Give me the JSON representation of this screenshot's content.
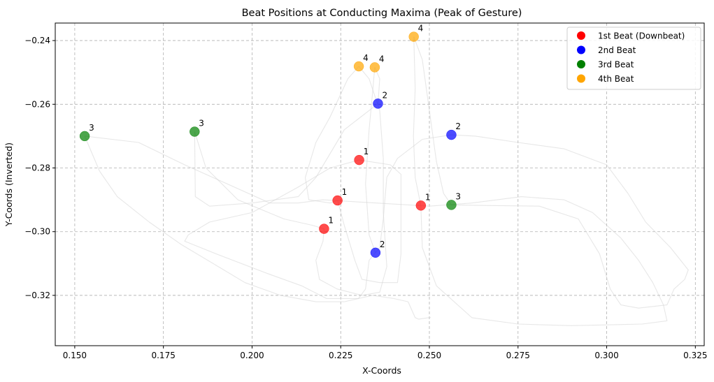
{
  "chart_data": {
    "type": "scatter",
    "title": "Beat Positions at Conducting Maxima (Peak of Gesture)",
    "xlabel": "X-Coords",
    "ylabel": "Y-Coords (Inverted)",
    "xlim": [
      0.1445,
      0.3275
    ],
    "ylim": [
      -0.3358,
      -0.2345
    ],
    "xticks": [
      0.15,
      0.175,
      0.2,
      0.225,
      0.25,
      0.275,
      0.3,
      0.325
    ],
    "xtick_labels": [
      "0.150",
      "0.175",
      "0.200",
      "0.225",
      "0.250",
      "0.275",
      "0.300",
      "0.325"
    ],
    "yticks": [
      -0.24,
      -0.26,
      -0.28,
      -0.3,
      -0.32
    ],
    "ytick_labels": [
      "−0.24",
      "−0.26",
      "−0.28",
      "−0.30",
      "−0.32"
    ],
    "grid": true,
    "legend_position": "top-right",
    "series": [
      {
        "name": "1st Beat (Downbeat)",
        "color": "#ff0000",
        "label": "1",
        "points": [
          [
            0.2302,
            -0.2775
          ],
          [
            0.2241,
            -0.2902
          ],
          [
            0.2203,
            -0.2991
          ],
          [
            0.2476,
            -0.2918
          ]
        ]
      },
      {
        "name": "2nd Beat",
        "color": "#0000ff",
        "label": "2",
        "points": [
          [
            0.2355,
            -0.2598
          ],
          [
            0.2562,
            -0.2696
          ],
          [
            0.2348,
            -0.3066
          ]
        ]
      },
      {
        "name": "3rd Beat",
        "color": "#008000",
        "label": "3",
        "points": [
          [
            0.1528,
            -0.27
          ],
          [
            0.1838,
            -0.2686
          ],
          [
            0.2562,
            -0.2916
          ]
        ]
      },
      {
        "name": "4th Beat",
        "color": "#ffa500",
        "label": "4",
        "points": [
          [
            0.2301,
            -0.2481
          ],
          [
            0.2346,
            -0.2484
          ],
          [
            0.2456,
            -0.2388
          ]
        ]
      }
    ],
    "trajectories": [
      [
        [
          0.1528,
          -0.27
        ],
        [
          0.168,
          -0.272
        ],
        [
          0.181,
          -0.279
        ],
        [
          0.195,
          -0.286
        ],
        [
          0.205,
          -0.291
        ],
        [
          0.213,
          -0.291
        ],
        [
          0.22,
          -0.29
        ],
        [
          0.235,
          -0.291
        ],
        [
          0.25,
          -0.292
        ],
        [
          0.262,
          -0.291
        ],
        [
          0.276,
          -0.289
        ],
        [
          0.288,
          -0.29
        ],
        [
          0.296,
          -0.294
        ],
        [
          0.304,
          -0.302
        ],
        [
          0.309,
          -0.309
        ],
        [
          0.313,
          -0.316
        ],
        [
          0.316,
          -0.323
        ],
        [
          0.317,
          -0.328
        ],
        [
          0.31,
          -0.329
        ],
        [
          0.29,
          -0.3295
        ],
        [
          0.275,
          -0.329
        ],
        [
          0.262,
          -0.327
        ],
        [
          0.252,
          -0.317
        ],
        [
          0.248,
          -0.305
        ],
        [
          0.2476,
          -0.2918
        ]
      ],
      [
        [
          0.2476,
          -0.2918
        ],
        [
          0.246,
          -0.283
        ],
        [
          0.2455,
          -0.27
        ],
        [
          0.246,
          -0.255
        ],
        [
          0.2456,
          -0.2388
        ]
      ],
      [
        [
          0.2456,
          -0.2388
        ],
        [
          0.248,
          -0.246
        ],
        [
          0.25,
          -0.262
        ],
        [
          0.252,
          -0.278
        ],
        [
          0.254,
          -0.288
        ],
        [
          0.2562,
          -0.2916
        ],
        [
          0.267,
          -0.2918
        ],
        [
          0.281,
          -0.292
        ],
        [
          0.292,
          -0.296
        ],
        [
          0.298,
          -0.307
        ],
        [
          0.301,
          -0.318
        ],
        [
          0.304,
          -0.323
        ],
        [
          0.309,
          -0.324
        ],
        [
          0.317,
          -0.323
        ],
        [
          0.319,
          -0.318
        ],
        [
          0.322,
          -0.315
        ],
        [
          0.323,
          -0.312
        ],
        [
          0.318,
          -0.305
        ],
        [
          0.311,
          -0.297
        ],
        [
          0.306,
          -0.288
        ],
        [
          0.3,
          -0.279
        ],
        [
          0.288,
          -0.274
        ],
        [
          0.275,
          -0.272
        ],
        [
          0.263,
          -0.27
        ],
        [
          0.2562,
          -0.2696
        ]
      ],
      [
        [
          0.2562,
          -0.2696
        ],
        [
          0.248,
          -0.271
        ],
        [
          0.241,
          -0.277
        ],
        [
          0.238,
          -0.283
        ],
        [
          0.237,
          -0.296
        ],
        [
          0.236,
          -0.305
        ],
        [
          0.2348,
          -0.3066
        ]
      ],
      [
        [
          0.2348,
          -0.3066
        ],
        [
          0.233,
          -0.301
        ],
        [
          0.232,
          -0.285
        ],
        [
          0.233,
          -0.268
        ],
        [
          0.234,
          -0.256
        ],
        [
          0.2346,
          -0.2484
        ]
      ],
      [
        [
          0.2346,
          -0.2484
        ],
        [
          0.236,
          -0.252
        ],
        [
          0.2355,
          -0.2598
        ]
      ],
      [
        [
          0.2355,
          -0.2598
        ],
        [
          0.226,
          -0.268
        ],
        [
          0.218,
          -0.283
        ],
        [
          0.213,
          -0.289
        ],
        [
          0.2,
          -0.291
        ],
        [
          0.188,
          -0.292
        ],
        [
          0.184,
          -0.289
        ],
        [
          0.1838,
          -0.2686
        ]
      ],
      [
        [
          0.1838,
          -0.2686
        ],
        [
          0.187,
          -0.28
        ],
        [
          0.196,
          -0.29
        ],
        [
          0.209,
          -0.296
        ],
        [
          0.217,
          -0.298
        ],
        [
          0.2203,
          -0.2991
        ]
      ],
      [
        [
          0.2203,
          -0.2991
        ],
        [
          0.22,
          -0.303
        ],
        [
          0.218,
          -0.309
        ],
        [
          0.219,
          -0.315
        ],
        [
          0.224,
          -0.318
        ],
        [
          0.231,
          -0.32
        ],
        [
          0.236,
          -0.319
        ],
        [
          0.238,
          -0.311
        ],
        [
          0.237,
          -0.294
        ],
        [
          0.237,
          -0.277
        ],
        [
          0.236,
          -0.262
        ],
        [
          0.233,
          -0.252
        ],
        [
          0.2301,
          -0.2481
        ]
      ],
      [
        [
          0.2301,
          -0.2481
        ],
        [
          0.227,
          -0.252
        ],
        [
          0.222,
          -0.264
        ],
        [
          0.218,
          -0.272
        ],
        [
          0.215,
          -0.283
        ],
        [
          0.216,
          -0.29
        ],
        [
          0.222,
          -0.291
        ],
        [
          0.2241,
          -0.2902
        ]
      ],
      [
        [
          0.2241,
          -0.2902
        ],
        [
          0.226,
          -0.298
        ],
        [
          0.229,
          -0.309
        ],
        [
          0.231,
          -0.315
        ],
        [
          0.236,
          -0.316
        ],
        [
          0.241,
          -0.316
        ],
        [
          0.242,
          -0.307
        ],
        [
          0.242,
          -0.295
        ],
        [
          0.242,
          -0.282
        ],
        [
          0.239,
          -0.279
        ],
        [
          0.2302,
          -0.2775
        ]
      ],
      [
        [
          0.2302,
          -0.2775
        ],
        [
          0.222,
          -0.28
        ],
        [
          0.213,
          -0.286
        ],
        [
          0.2,
          -0.294
        ],
        [
          0.188,
          -0.297
        ],
        [
          0.182,
          -0.301
        ],
        [
          0.181,
          -0.303
        ],
        [
          0.19,
          -0.307
        ],
        [
          0.204,
          -0.313
        ],
        [
          0.214,
          -0.317
        ],
        [
          0.221,
          -0.321
        ],
        [
          0.23,
          -0.321
        ],
        [
          0.232,
          -0.318
        ],
        [
          0.233,
          -0.309
        ],
        [
          0.2348,
          -0.3066
        ]
      ],
      [
        [
          0.1528,
          -0.27
        ],
        [
          0.157,
          -0.281
        ],
        [
          0.162,
          -0.289
        ],
        [
          0.171,
          -0.297
        ],
        [
          0.18,
          -0.304
        ],
        [
          0.189,
          -0.31
        ],
        [
          0.198,
          -0.316
        ],
        [
          0.208,
          -0.32
        ],
        [
          0.218,
          -0.322
        ],
        [
          0.226,
          -0.322
        ],
        [
          0.234,
          -0.32
        ],
        [
          0.24,
          -0.321
        ],
        [
          0.244,
          -0.322
        ],
        [
          0.246,
          -0.327
        ],
        [
          0.247,
          -0.3275
        ],
        [
          0.2504,
          -0.3269
        ]
      ]
    ]
  }
}
